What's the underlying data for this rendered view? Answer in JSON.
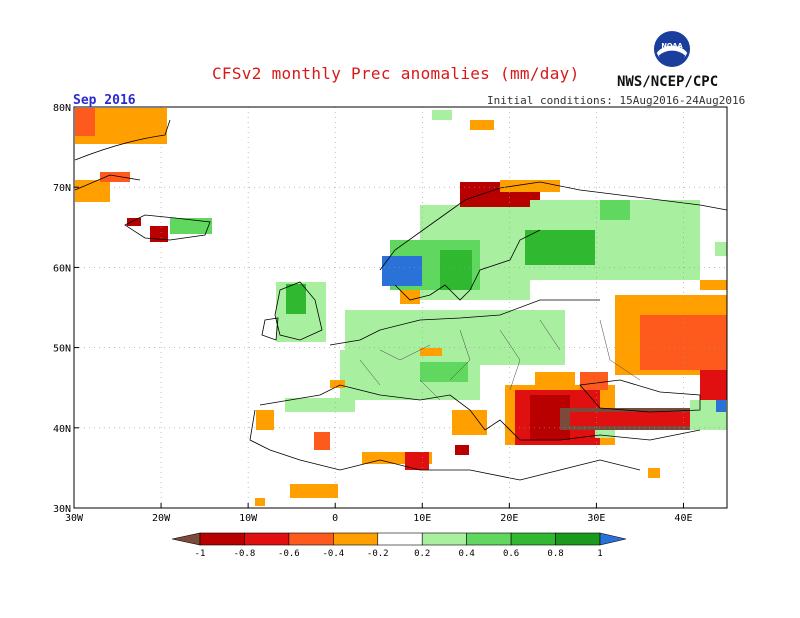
{
  "header": {
    "title": "CFSv2 monthly Prec anomalies (mm/day)",
    "month": "Sep 2016",
    "initial_conditions": "Initial conditions: 15Aug2016-24Aug2016",
    "org": "NWS/NCEP/CPC",
    "logo_text": "NOAA"
  },
  "map": {
    "lat_labels": [
      "80N",
      "70N",
      "60N",
      "50N",
      "40N",
      "30N"
    ],
    "lon_labels": [
      "30W",
      "20W",
      "10W",
      "0",
      "10E",
      "20E",
      "30E",
      "40E"
    ],
    "lat_range": [
      30,
      80
    ],
    "lon_range": [
      -30,
      45
    ]
  },
  "legend": {
    "labels": [
      "-1",
      "-0.8",
      "-0.6",
      "-0.4",
      "-0.2",
      "0.2",
      "0.4",
      "0.6",
      "0.8",
      "1"
    ],
    "colors": [
      "#7b4a3a",
      "#b80000",
      "#e01010",
      "#ff5a1e",
      "#ffa000",
      "#ffffff",
      "#a8f0a0",
      "#60d860",
      "#30b830",
      "#1a9a1a",
      "#2a72d8"
    ]
  },
  "colors": {
    "wet_light": "#a8f0a0",
    "wet_mid": "#60d860",
    "wet_dark": "#30b830",
    "wet_max": "#1a9a1a",
    "wet_extreme": "#2a72d8",
    "dry_light": "#ffa000",
    "dry_mid": "#ff5a1e",
    "dry_dark": "#e01010",
    "dry_max": "#b80000",
    "dry_extreme": "#7b4a3a"
  }
}
